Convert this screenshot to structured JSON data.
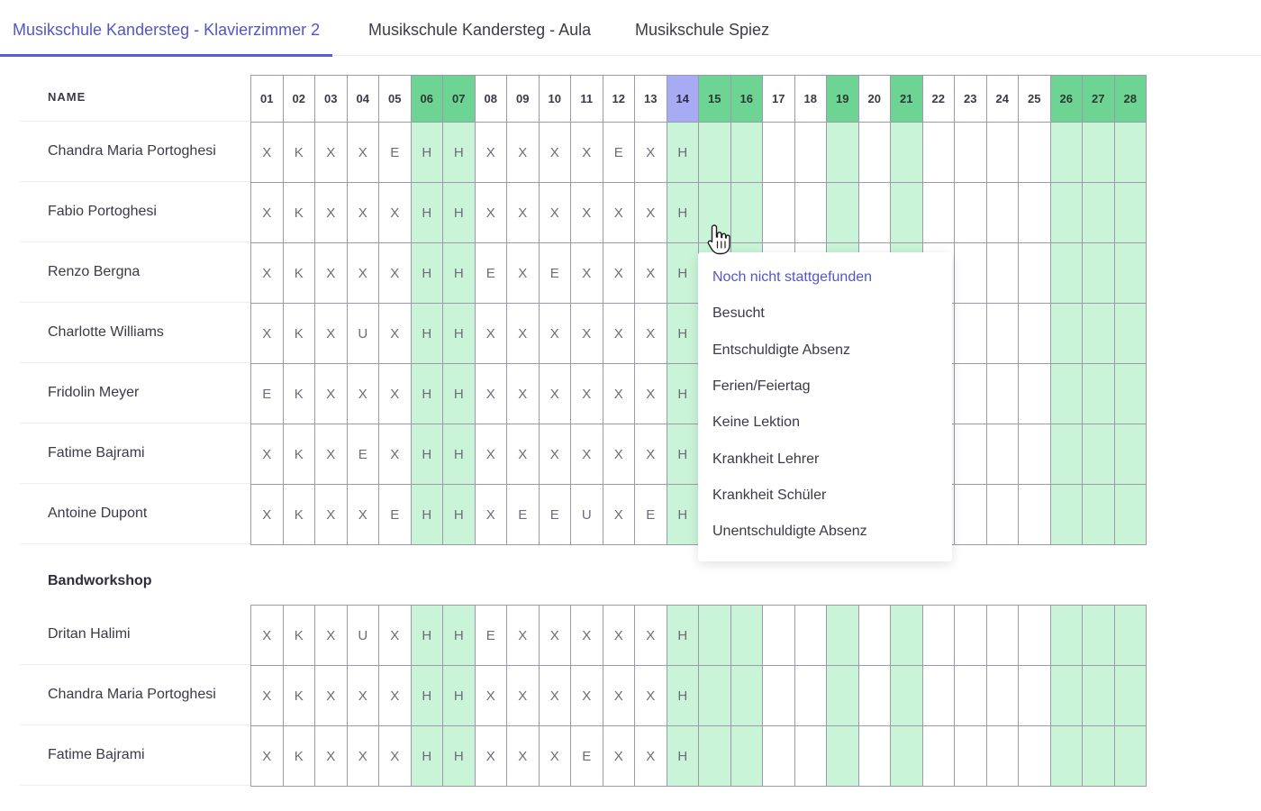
{
  "tabs": [
    {
      "label": "Musikschule Kandersteg - Klavierzimmer 2",
      "active": true
    },
    {
      "label": "Musikschule Kandersteg - Aula",
      "active": false
    },
    {
      "label": "Musikschule Spiez",
      "active": false
    }
  ],
  "table": {
    "name_header": "NAME",
    "days": [
      "01",
      "02",
      "03",
      "04",
      "05",
      "06",
      "07",
      "08",
      "09",
      "10",
      "11",
      "12",
      "13",
      "14",
      "15",
      "16",
      "17",
      "18",
      "19",
      "20",
      "21",
      "22",
      "23",
      "24",
      "25",
      "26",
      "27",
      "28"
    ],
    "weekend_days": [
      "06",
      "07",
      "15",
      "16",
      "19",
      "21",
      "26",
      "27",
      "28"
    ],
    "today": "14"
  },
  "groups": [
    {
      "title": "",
      "rows": [
        {
          "name": "Chandra Maria Portoghesi",
          "marks": [
            "X",
            "K",
            "X",
            "X",
            "E",
            "H",
            "H",
            "X",
            "X",
            "X",
            "X",
            "E",
            "X",
            "H"
          ]
        },
        {
          "name": "Fabio Portoghesi",
          "marks": [
            "X",
            "K",
            "X",
            "X",
            "X",
            "H",
            "H",
            "X",
            "X",
            "X",
            "X",
            "X",
            "X",
            "H"
          ]
        },
        {
          "name": "Renzo Bergna",
          "marks": [
            "X",
            "K",
            "X",
            "X",
            "X",
            "H",
            "H",
            "E",
            "X",
            "E",
            "X",
            "X",
            "X",
            "H"
          ]
        },
        {
          "name": "Charlotte Williams",
          "marks": [
            "X",
            "K",
            "X",
            "U",
            "X",
            "H",
            "H",
            "X",
            "X",
            "X",
            "X",
            "X",
            "X",
            "H"
          ]
        },
        {
          "name": "Fridolin Meyer",
          "marks": [
            "E",
            "K",
            "X",
            "X",
            "X",
            "H",
            "H",
            "X",
            "X",
            "X",
            "X",
            "X",
            "X",
            "H"
          ]
        },
        {
          "name": "Fatime Bajrami",
          "marks": [
            "X",
            "K",
            "X",
            "E",
            "X",
            "H",
            "H",
            "X",
            "X",
            "X",
            "X",
            "X",
            "X",
            "H"
          ]
        },
        {
          "name": "Antoine Dupont",
          "marks": [
            "X",
            "K",
            "X",
            "X",
            "E",
            "H",
            "H",
            "X",
            "E",
            "E",
            "U",
            "X",
            "E",
            "H"
          ]
        }
      ]
    },
    {
      "title": "Bandworkshop",
      "rows": [
        {
          "name": "Dritan Halimi",
          "marks": [
            "X",
            "K",
            "X",
            "U",
            "X",
            "H",
            "H",
            "E",
            "X",
            "X",
            "X",
            "X",
            "X",
            "H"
          ]
        },
        {
          "name": "Chandra Maria Portoghesi",
          "marks": [
            "X",
            "K",
            "X",
            "X",
            "X",
            "H",
            "H",
            "X",
            "X",
            "X",
            "X",
            "X",
            "X",
            "H"
          ]
        },
        {
          "name": "Fatime Bajrami",
          "marks": [
            "X",
            "K",
            "X",
            "X",
            "X",
            "H",
            "H",
            "X",
            "X",
            "X",
            "E",
            "X",
            "X",
            "H"
          ]
        }
      ]
    }
  ],
  "status_menu": {
    "options": [
      "Noch nicht stattgefunden",
      "Besucht",
      "Entschuldigte Absenz",
      "Ferien/Feiertag",
      "Keine Lektion",
      "Krankheit Lehrer",
      "Krankheit Schüler",
      "Unentschuldigte Absenz"
    ],
    "selected_index": 0
  },
  "colors": {
    "accent": "#5256c9",
    "weekend_header": "#6ed494",
    "weekend_cell": "#c9f4d7",
    "today_header": "#a7abf3"
  },
  "icons": {
    "cursor": "hand-pointer-icon"
  }
}
